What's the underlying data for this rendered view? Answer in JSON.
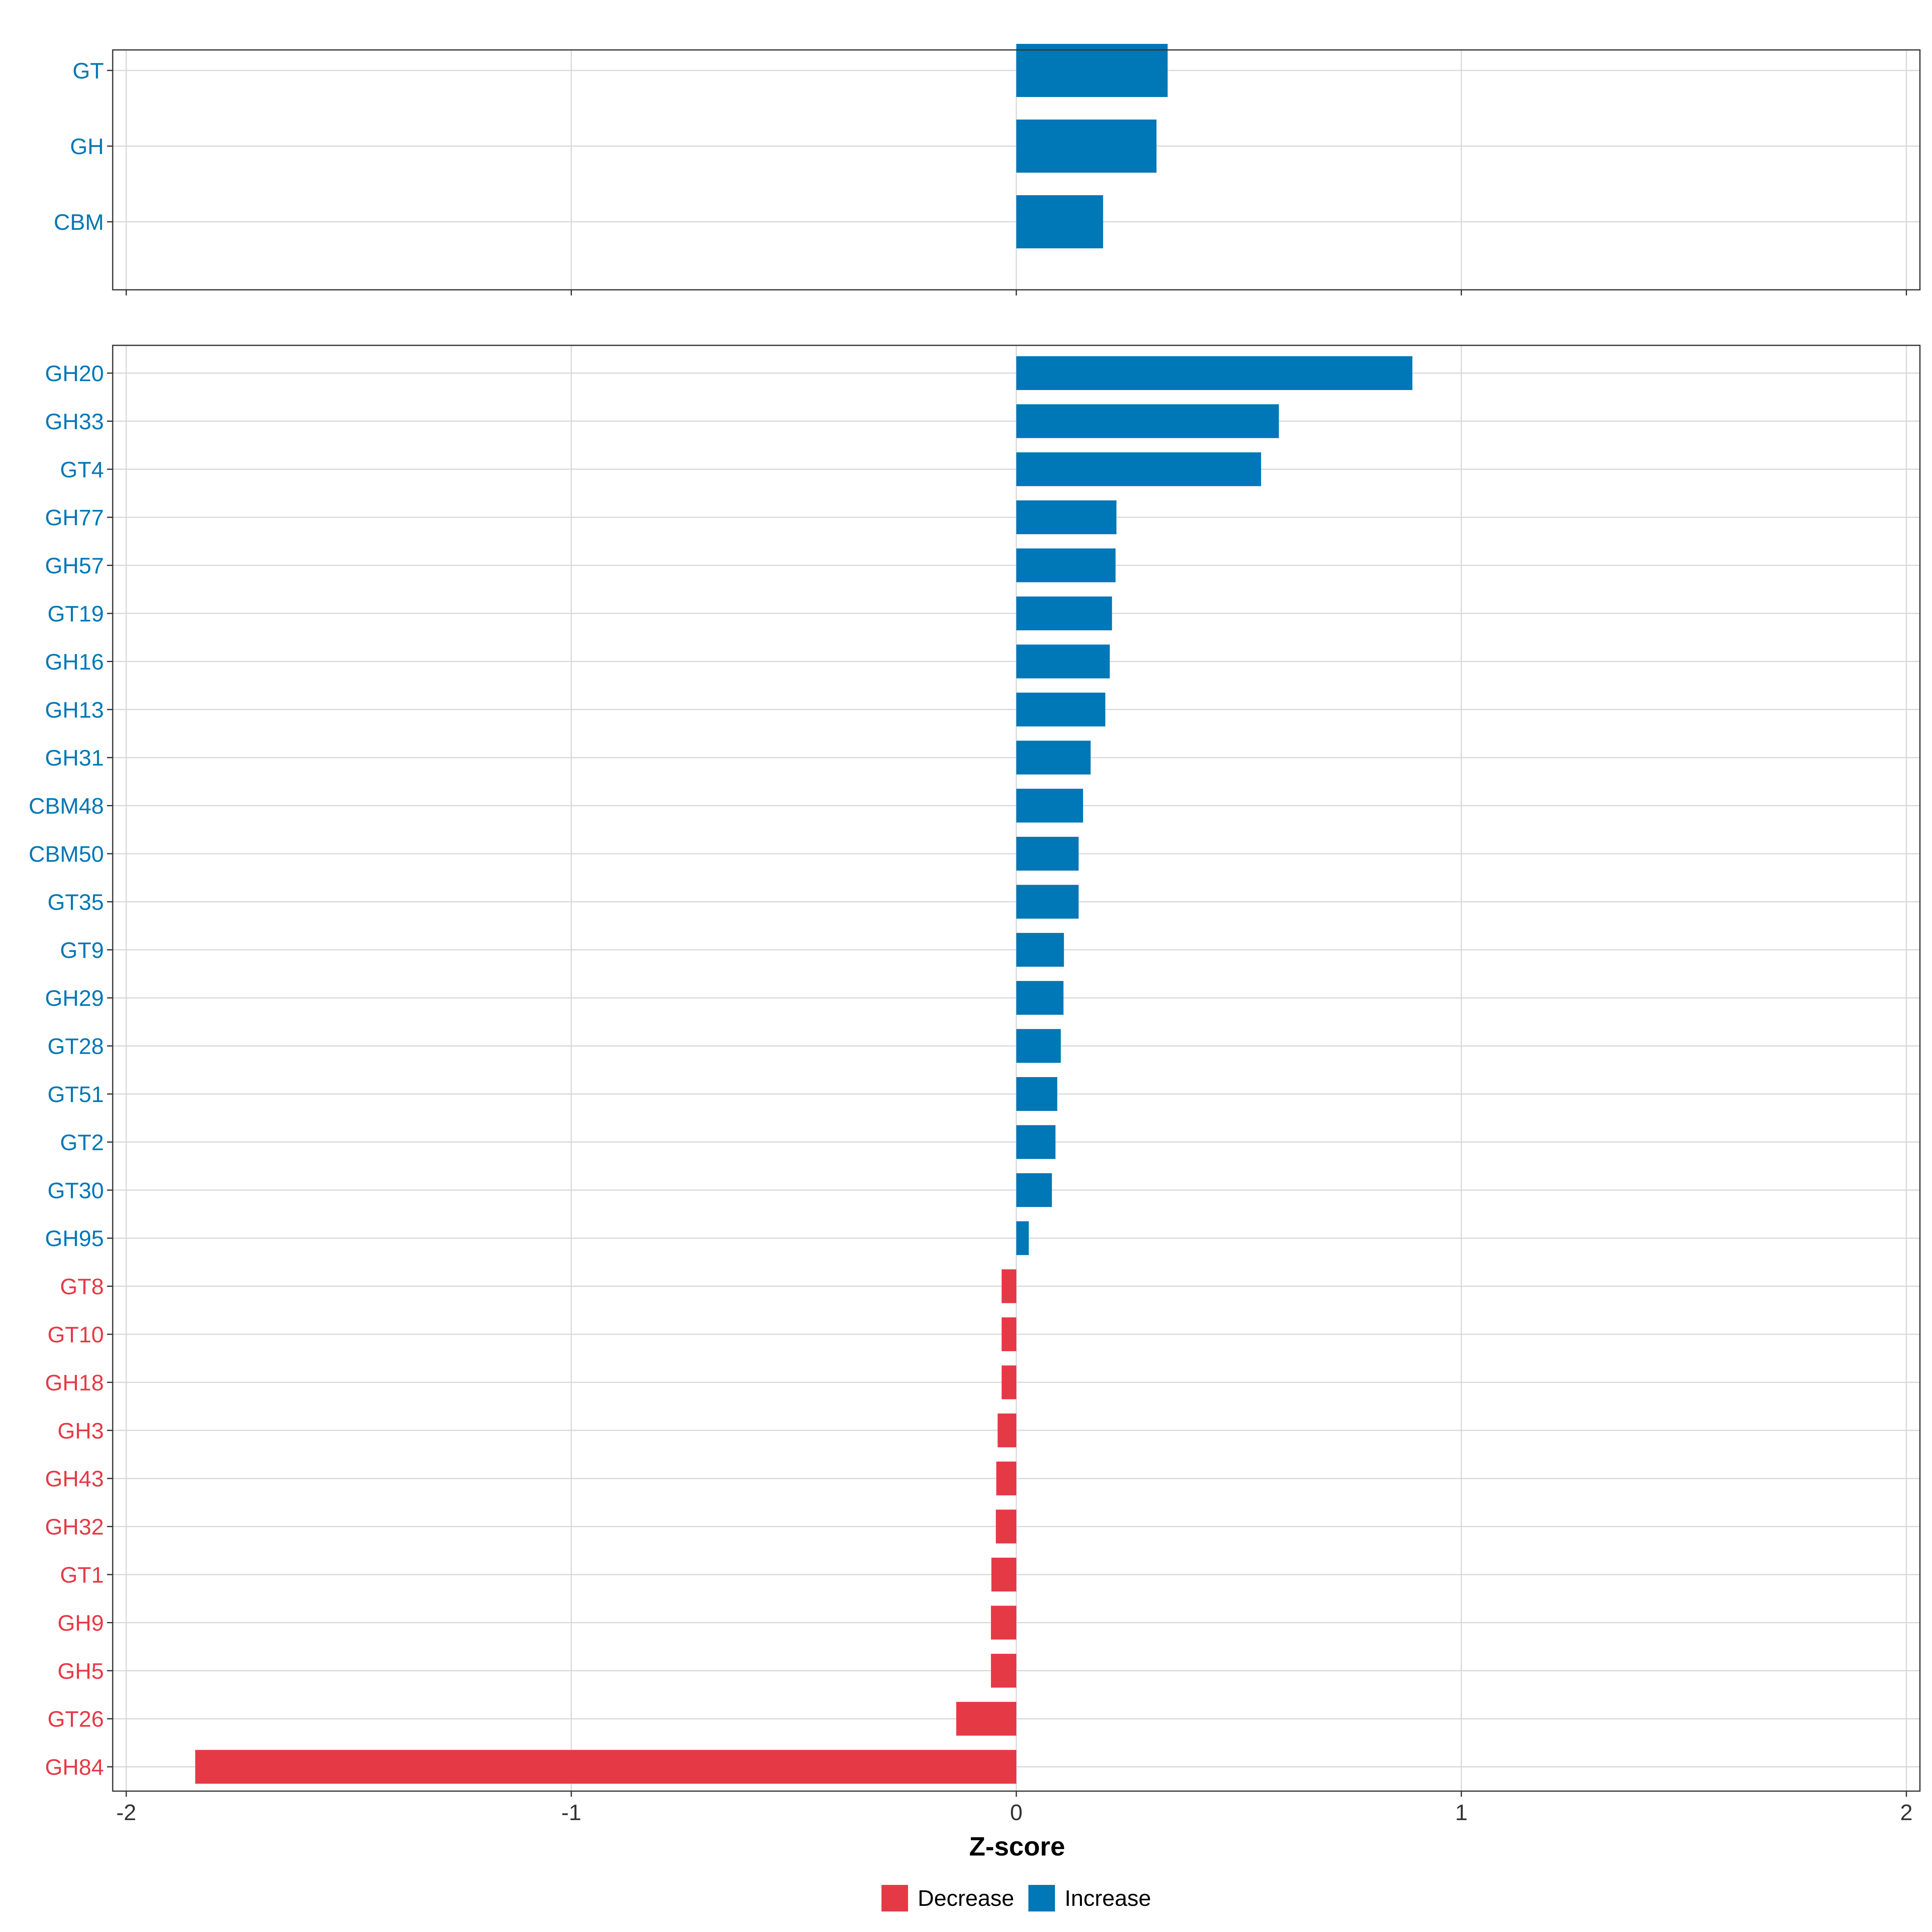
{
  "colors": {
    "increase": "#0077B6",
    "decrease": "#E63946"
  },
  "chart_data": {
    "type": "bar",
    "orientation": "horizontal",
    "title": "",
    "xlabel": "Z-score",
    "ylabel": "",
    "xlim": [
      -2,
      2
    ],
    "x_ticks": [
      "-2",
      "-1",
      "0",
      "1",
      "2"
    ],
    "grid": true,
    "legend": {
      "placement": "bottom",
      "entries": [
        {
          "label": "Decrease",
          "color": "#E63946"
        },
        {
          "label": "Increase",
          "color": "#0077B6"
        }
      ]
    },
    "panels": [
      {
        "name": "class",
        "categories": [
          "GT",
          "GH",
          "CBM"
        ],
        "values": [
          0.34,
          0.315,
          0.195
        ]
      },
      {
        "name": "family",
        "categories": [
          "GH20",
          "GH33",
          "GT4",
          "GH77",
          "GH57",
          "GT19",
          "GH16",
          "GH13",
          "GH31",
          "CBM48",
          "CBM50",
          "GT35",
          "GT9",
          "GH29",
          "GT28",
          "GT51",
          "GT2",
          "GT30",
          "GH95",
          "GT8",
          "GT10",
          "GH18",
          "GH3",
          "GH43",
          "GH32",
          "GT1",
          "GH9",
          "GH5",
          "GT26",
          "GH84"
        ],
        "values": [
          0.89,
          0.59,
          0.55,
          0.225,
          0.223,
          0.215,
          0.21,
          0.2,
          0.167,
          0.15,
          0.14,
          0.14,
          0.107,
          0.106,
          0.1,
          0.092,
          0.088,
          0.08,
          0.028,
          -0.033,
          -0.033,
          -0.033,
          -0.042,
          -0.045,
          -0.046,
          -0.056,
          -0.057,
          -0.057,
          -0.135,
          -1.845
        ]
      }
    ]
  }
}
